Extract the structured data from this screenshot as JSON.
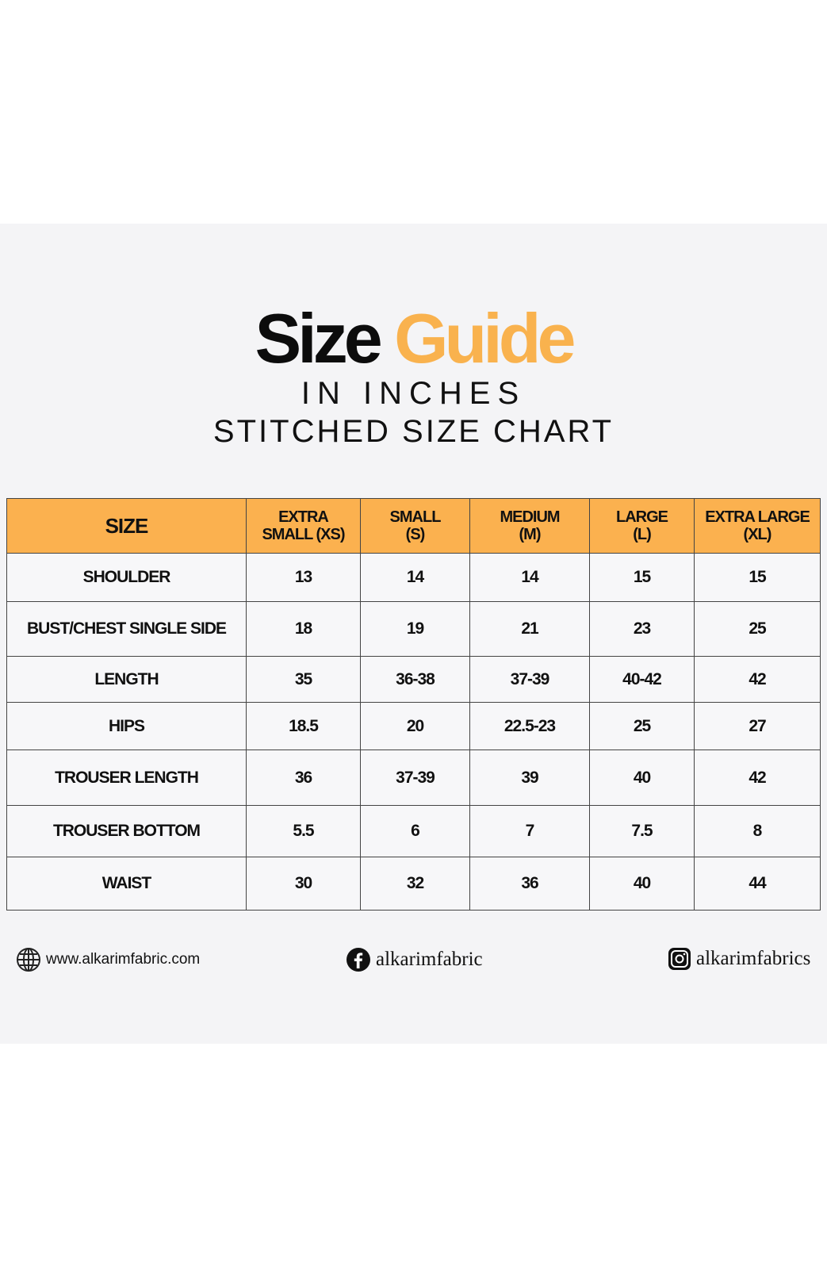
{
  "header": {
    "title_part1": "Size",
    "title_part2": "Guide",
    "subtitle": "IN INCHES",
    "chart_name": "STITCHED SIZE CHART"
  },
  "table": {
    "columns": [
      [
        "SIZE"
      ],
      [
        "EXTRA",
        "SMALL (XS)"
      ],
      [
        "SMALL",
        "(S)"
      ],
      [
        "MEDIUM",
        "(M)"
      ],
      [
        "LARGE",
        "(L)"
      ],
      [
        "EXTRA LARGE",
        "(XL)"
      ]
    ],
    "rows": [
      [
        "SHOULDER",
        "13",
        "14",
        "14",
        "15",
        "15"
      ],
      [
        "BUST/CHEST SINGLE SIDE",
        "18",
        "19",
        "21",
        "23",
        "25"
      ],
      [
        "LENGTH",
        "35",
        "36-38",
        "37-39",
        "40-42",
        "42"
      ],
      [
        "HIPS",
        "18.5",
        "20",
        "22.5-23",
        "25",
        "27"
      ],
      [
        "TROUSER LENGTH",
        "36",
        "37-39",
        "39",
        "40",
        "42"
      ],
      [
        "TROUSER BOTTOM",
        "5.5",
        "6",
        "7",
        "7.5",
        "8"
      ],
      [
        "WAIST",
        "30",
        "32",
        "36",
        "40",
        "44"
      ]
    ]
  },
  "footer": {
    "website": "www.alkarimfabric.com",
    "facebook": "alkarimfabric",
    "instagram": "alkarimfabrics"
  }
}
